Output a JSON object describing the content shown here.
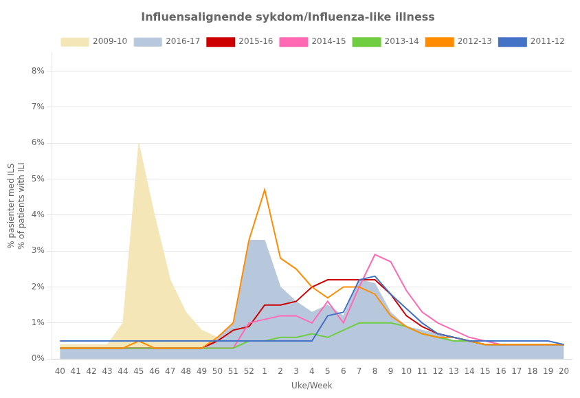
{
  "chart_data": {
    "type": "line",
    "title": "Influensalignende sykdom/Influenza-like illness",
    "xlabel": "Uke/Week",
    "ylabel": "% pasienter med ILS\n% of patients with ILI",
    "categories": [
      "40",
      "41",
      "42",
      "43",
      "44",
      "45",
      "46",
      "47",
      "48",
      "49",
      "50",
      "51",
      "52",
      "1",
      "2",
      "3",
      "4",
      "5",
      "6",
      "7",
      "8",
      "9",
      "10",
      "11",
      "12",
      "13",
      "14",
      "15",
      "16",
      "17",
      "18",
      "19",
      "20"
    ],
    "ylim": [
      0,
      0.085
    ],
    "yticks": [
      {
        "value": 0.0,
        "label": "0%"
      },
      {
        "value": 0.01,
        "label": "1%"
      },
      {
        "value": 0.02,
        "label": "2%"
      },
      {
        "value": 0.03,
        "label": "3%"
      },
      {
        "value": 0.04,
        "label": "4%"
      },
      {
        "value": 0.05,
        "label": "5%"
      },
      {
        "value": 0.06,
        "label": "6%"
      },
      {
        "value": 0.07,
        "label": "7%"
      },
      {
        "value": 0.08,
        "label": "8%"
      }
    ],
    "grid": "y",
    "legend": "upper right",
    "series": [
      {
        "name": "2009-10",
        "type": "area",
        "color": "#f5e6b8",
        "values": [
          0.004,
          0.004,
          0.004,
          0.004,
          0.01,
          0.06,
          0.04,
          0.022,
          0.013,
          0.008,
          0.006,
          0.005,
          0.004,
          0.004,
          0.004,
          0.004,
          0.004,
          0.004,
          0.004,
          0.004,
          0.004,
          0.004,
          0.004,
          0.004,
          0.004,
          0.004,
          0.004,
          0.004,
          0.004,
          0.004,
          0.004,
          0.004,
          0.004
        ]
      },
      {
        "name": "2016-17",
        "type": "area",
        "color": "#b8c8dc",
        "values": [
          0.003,
          0.003,
          0.003,
          0.003,
          0.003,
          0.003,
          0.003,
          0.003,
          0.003,
          0.003,
          0.006,
          0.01,
          0.033,
          0.033,
          0.02,
          0.016,
          0.013,
          0.015,
          0.012,
          0.022,
          0.021,
          0.013,
          0.009,
          0.008,
          0.007,
          0.005,
          0.005,
          0.004,
          0.004,
          0.004,
          0.004,
          0.004,
          0.004
        ]
      },
      {
        "name": "2015-16",
        "type": "line",
        "color": "#cc0000",
        "values": [
          0.003,
          0.003,
          0.003,
          0.003,
          0.003,
          0.003,
          0.003,
          0.003,
          0.003,
          0.003,
          0.005,
          0.008,
          0.009,
          0.015,
          0.015,
          0.016,
          0.02,
          0.022,
          0.022,
          0.022,
          0.022,
          0.018,
          0.012,
          0.009,
          0.007,
          0.006,
          0.005,
          0.004,
          0.004,
          0.004,
          0.004,
          0.004,
          0.004
        ]
      },
      {
        "name": "2014-15",
        "type": "line",
        "color": "#ff69b4",
        "values": [
          0.003,
          0.003,
          0.003,
          0.003,
          0.003,
          0.003,
          0.003,
          0.003,
          0.003,
          0.003,
          0.003,
          0.003,
          0.01,
          0.011,
          0.012,
          0.012,
          0.01,
          0.016,
          0.01,
          0.02,
          0.029,
          0.027,
          0.019,
          0.013,
          0.01,
          0.008,
          0.006,
          0.005,
          0.004,
          0.004,
          0.004,
          0.004,
          0.004
        ]
      },
      {
        "name": "2013-14",
        "type": "line",
        "color": "#70cc40",
        "values": [
          0.003,
          0.003,
          0.003,
          0.003,
          0.003,
          0.003,
          0.003,
          0.003,
          0.003,
          0.003,
          0.003,
          0.003,
          0.005,
          0.005,
          0.006,
          0.006,
          0.007,
          0.006,
          0.008,
          0.01,
          0.01,
          0.01,
          0.009,
          0.007,
          0.006,
          0.005,
          0.005,
          0.004,
          0.004,
          0.004,
          0.004,
          0.004,
          0.004
        ]
      },
      {
        "name": "2012-13",
        "type": "line",
        "color": "#ff8c00",
        "values": [
          0.003,
          0.003,
          0.003,
          0.003,
          0.003,
          0.005,
          0.003,
          0.003,
          0.003,
          0.003,
          0.006,
          0.01,
          0.033,
          0.047,
          0.028,
          0.025,
          0.02,
          0.017,
          0.02,
          0.02,
          0.018,
          0.012,
          0.009,
          0.007,
          0.006,
          0.006,
          0.005,
          0.004,
          0.004,
          0.004,
          0.004,
          0.004,
          0.004
        ]
      },
      {
        "name": "2011-12",
        "type": "line",
        "color": "#4472c4",
        "values": [
          0.005,
          0.005,
          0.005,
          0.005,
          0.005,
          0.005,
          0.005,
          0.005,
          0.005,
          0.005,
          0.005,
          0.005,
          0.005,
          0.005,
          0.005,
          0.005,
          0.005,
          0.012,
          0.013,
          0.022,
          0.023,
          0.018,
          0.014,
          0.01,
          0.007,
          0.006,
          0.005,
          0.005,
          0.005,
          0.005,
          0.005,
          0.005,
          0.004
        ]
      }
    ]
  }
}
